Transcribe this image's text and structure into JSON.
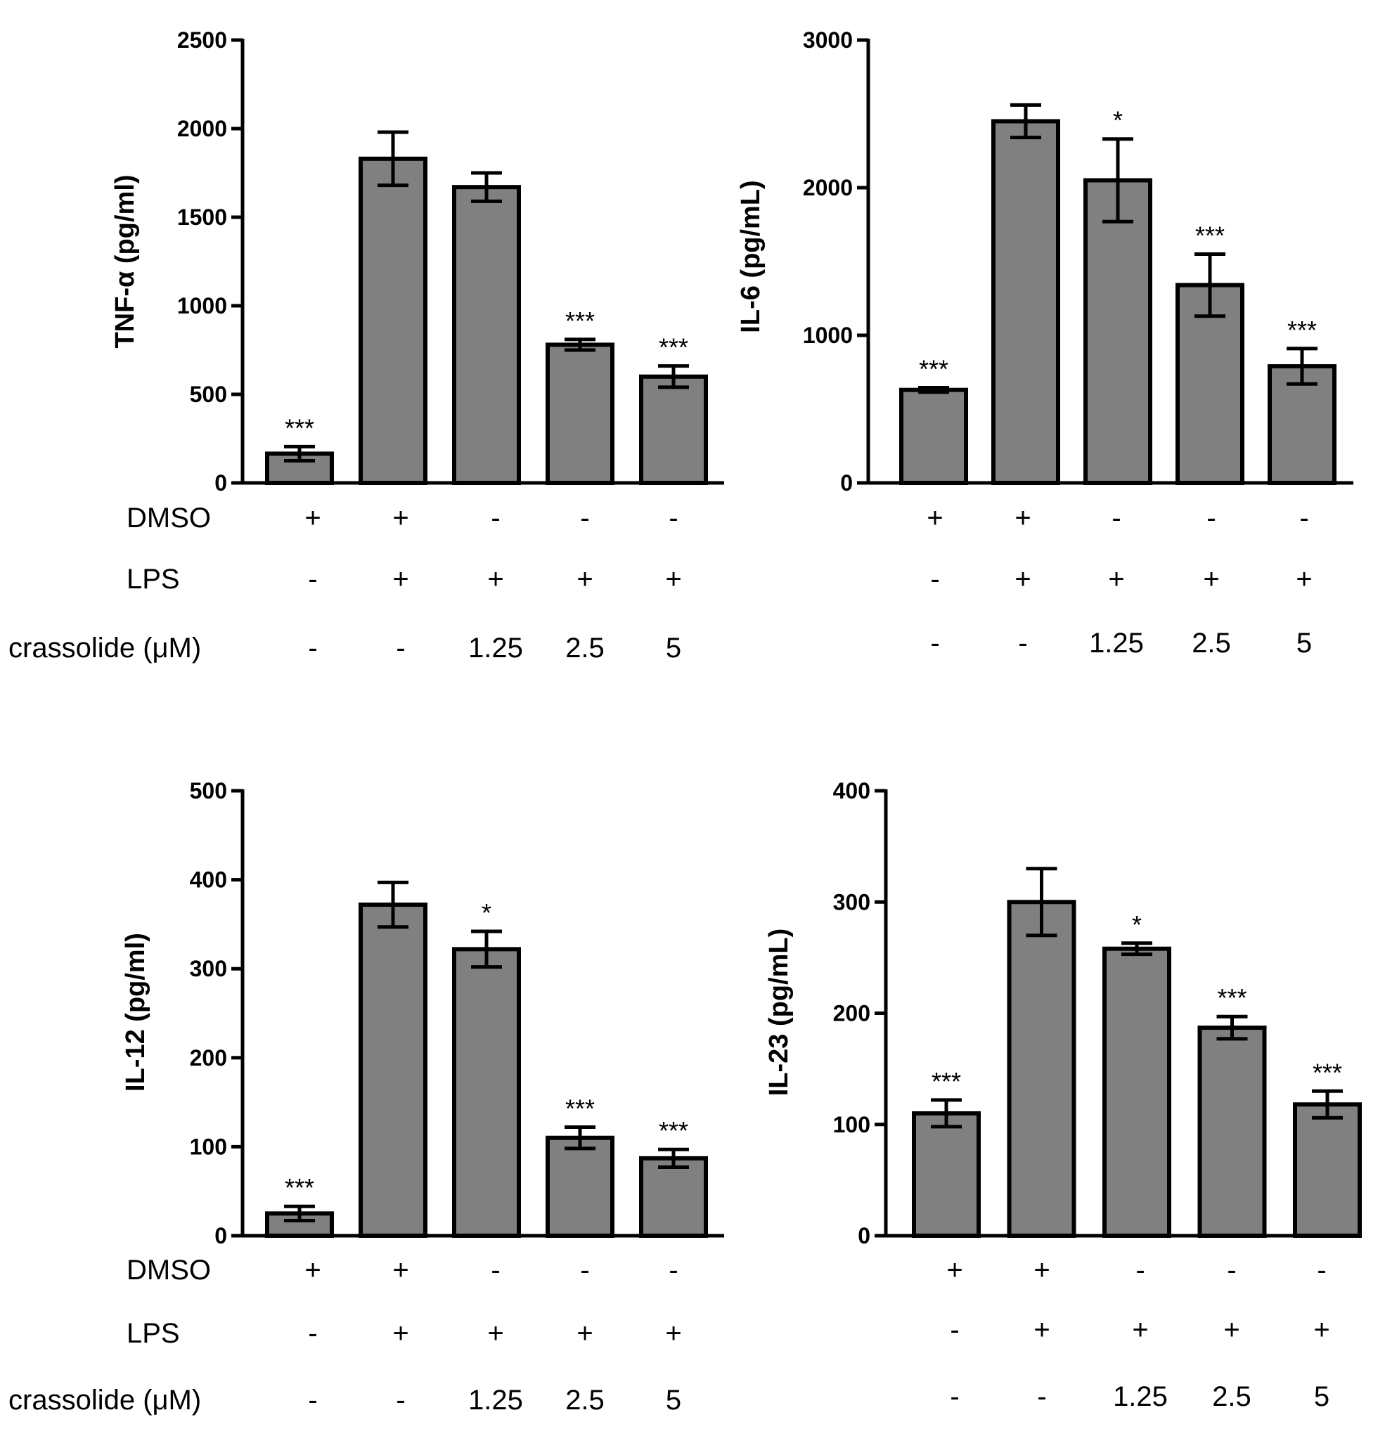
{
  "colors": {
    "bar_fill": "#808080",
    "bar_stroke": "#000000",
    "axis": "#000000"
  },
  "conditions": {
    "row_labels": [
      "DMSO",
      "LPS",
      "crassolide (μM)"
    ],
    "dmso": [
      "+",
      "+",
      "-",
      "-",
      "-"
    ],
    "lps": [
      "-",
      "+",
      "+",
      "+",
      "+"
    ],
    "crassolide": [
      "-",
      "-",
      "1.25",
      "2.5",
      "5"
    ]
  },
  "chart_data": [
    {
      "type": "bar",
      "ylabel": "TNF-α (pg/ml)",
      "ylim": [
        0,
        2500
      ],
      "yticks": [
        0,
        500,
        1000,
        1500,
        2000,
        2500
      ],
      "values": [
        165,
        1830,
        1670,
        780,
        600
      ],
      "errors": [
        40,
        150,
        80,
        30,
        60
      ],
      "significance": [
        "***",
        "",
        "",
        "***",
        "***"
      ]
    },
    {
      "type": "bar",
      "ylabel": "IL-6 (pg/mL)",
      "ylim": [
        0,
        3000
      ],
      "yticks": [
        0,
        1000,
        2000,
        3000
      ],
      "values": [
        630,
        2450,
        2050,
        1340,
        790
      ],
      "errors": [
        15,
        110,
        280,
        210,
        120
      ],
      "significance": [
        "***",
        "",
        "*",
        "***",
        "***"
      ]
    },
    {
      "type": "bar",
      "ylabel": "IL-12 (pg/ml)",
      "ylim": [
        0,
        500
      ],
      "yticks": [
        0,
        100,
        200,
        300,
        400,
        500
      ],
      "values": [
        25,
        372,
        322,
        110,
        87
      ],
      "errors": [
        8,
        25,
        20,
        12,
        10
      ],
      "significance": [
        "***",
        "",
        "*",
        "***",
        "***"
      ]
    },
    {
      "type": "bar",
      "ylabel": "IL-23 (pg/mL)",
      "ylim": [
        0,
        400
      ],
      "yticks": [
        0,
        100,
        200,
        300,
        400
      ],
      "values": [
        110,
        300,
        258,
        187,
        118
      ],
      "errors": [
        12,
        30,
        5,
        10,
        12
      ],
      "significance": [
        "***",
        "",
        "*",
        "***",
        "***"
      ]
    }
  ]
}
